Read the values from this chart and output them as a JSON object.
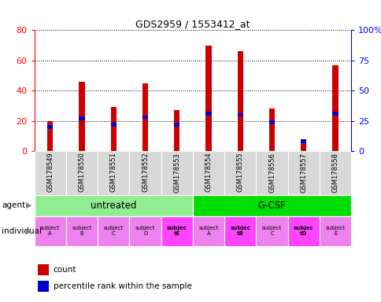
{
  "title": "GDS2959 / 1553412_at",
  "samples": [
    "GSM178549",
    "GSM178550",
    "GSM178551",
    "GSM178552",
    "GSM178553",
    "GSM178554",
    "GSM178555",
    "GSM178556",
    "GSM178557",
    "GSM178558"
  ],
  "count_values": [
    20,
    46,
    29,
    45,
    27,
    70,
    66,
    28,
    5,
    57
  ],
  "percentile_values": [
    20,
    27,
    22,
    28,
    22,
    31,
    30,
    24,
    8,
    31
  ],
  "agents": [
    {
      "label": "untreated",
      "start": 0,
      "end": 5,
      "color": "#90ee90"
    },
    {
      "label": "G-CSF",
      "start": 5,
      "end": 10,
      "color": "#00dd00"
    }
  ],
  "individuals": [
    {
      "label": "subject\nA",
      "col": 0,
      "bold": false
    },
    {
      "label": "subject\nB",
      "col": 1,
      "bold": false
    },
    {
      "label": "subject\nC",
      "col": 2,
      "bold": false
    },
    {
      "label": "subject\nD",
      "col": 3,
      "bold": false
    },
    {
      "label": "subjec\ntE",
      "col": 4,
      "bold": true
    },
    {
      "label": "subject\nA",
      "col": 5,
      "bold": false
    },
    {
      "label": "subjec\ntB",
      "col": 6,
      "bold": true
    },
    {
      "label": "subject\nC",
      "col": 7,
      "bold": false
    },
    {
      "label": "subjec\ntD",
      "col": 8,
      "bold": true
    },
    {
      "label": "subject\nE",
      "col": 9,
      "bold": false
    }
  ],
  "individual_colors": [
    "#ee82ee",
    "#ee82ee",
    "#ee82ee",
    "#ee82ee",
    "#ff44ff",
    "#ee82ee",
    "#ff44ff",
    "#ee82ee",
    "#ff44ff",
    "#ee82ee"
  ],
  "ylim": [
    0,
    80
  ],
  "y2lim": [
    0,
    100
  ],
  "yticks": [
    0,
    20,
    40,
    60,
    80
  ],
  "y2ticks": [
    0,
    25,
    50,
    75,
    100
  ],
  "y2labels": [
    "0",
    "25",
    "50",
    "75",
    "100%"
  ],
  "bar_color": "#cc0000",
  "percentile_color": "#0000cc",
  "bar_width": 0.18,
  "grid_color": "#000000"
}
